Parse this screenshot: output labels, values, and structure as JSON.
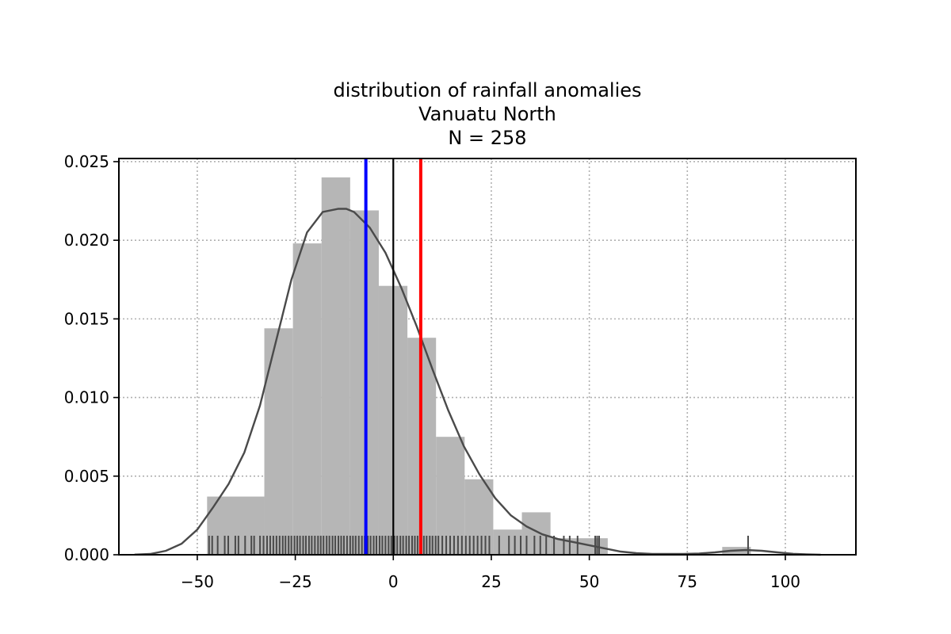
{
  "chart_data": {
    "type": "histogram",
    "title_lines": [
      "distribution of rainfall anomalies",
      "Vanuatu North",
      "N = 258"
    ],
    "xlabel": "",
    "ylabel": "",
    "xlim": [
      -70,
      118
    ],
    "ylim": [
      0,
      0.0252
    ],
    "xticks": [
      -50,
      -25,
      0,
      25,
      50,
      75,
      100
    ],
    "xtick_labels": [
      "−50",
      "−25",
      "0",
      "25",
      "50",
      "75",
      "100"
    ],
    "yticks": [
      0.0,
      0.005,
      0.01,
      0.015,
      0.02,
      0.025
    ],
    "ytick_labels": [
      "0.000",
      "0.005",
      "0.010",
      "0.015",
      "0.020",
      "0.025"
    ],
    "grid": true,
    "bar_color": "#b6b6b6",
    "bins": [
      {
        "x0": -47.5,
        "x1": -32.9,
        "density": 0.0037
      },
      {
        "x0": -32.9,
        "x1": -25.6,
        "density": 0.0144
      },
      {
        "x0": -25.6,
        "x1": -18.3,
        "density": 0.0198
      },
      {
        "x0": -18.3,
        "x1": -11.0,
        "density": 0.024
      },
      {
        "x0": -11.0,
        "x1": -3.7,
        "density": 0.0219
      },
      {
        "x0": -3.7,
        "x1": 3.6,
        "density": 0.0171
      },
      {
        "x0": 3.6,
        "x1": 10.9,
        "density": 0.0138
      },
      {
        "x0": 10.9,
        "x1": 18.2,
        "density": 0.0075
      },
      {
        "x0": 18.2,
        "x1": 25.5,
        "density": 0.0048
      },
      {
        "x0": 25.5,
        "x1": 32.8,
        "density": 0.0016
      },
      {
        "x0": 32.8,
        "x1": 40.1,
        "density": 0.0027
      },
      {
        "x0": 40.1,
        "x1": 54.7,
        "density": 0.00105
      },
      {
        "x0": 83.9,
        "x1": 91.2,
        "density": 0.0005
      }
    ],
    "kde": {
      "color": "#4a4a4a",
      "x": [
        -66,
        -62,
        -58,
        -54,
        -50,
        -46,
        -42,
        -38,
        -34,
        -30,
        -26,
        -22,
        -18,
        -14,
        -12,
        -10,
        -6,
        -2,
        2,
        6,
        10,
        14,
        18,
        22,
        26,
        30,
        34,
        38,
        42,
        46,
        50,
        54,
        58,
        62,
        66,
        70,
        74,
        78,
        82,
        86,
        90,
        94,
        98,
        102,
        106,
        109
      ],
      "y": [
        1e-05,
        5e-05,
        0.00025,
        0.0007,
        0.0016,
        0.003,
        0.0045,
        0.0065,
        0.0095,
        0.0135,
        0.0175,
        0.0205,
        0.0218,
        0.022,
        0.022,
        0.0218,
        0.0208,
        0.0192,
        0.017,
        0.0145,
        0.0118,
        0.0092,
        0.0069,
        0.0051,
        0.0036,
        0.0025,
        0.0018,
        0.0013,
        0.001,
        0.0008,
        0.0006,
        0.0004,
        0.0002,
        0.0001,
        5e-05,
        5e-05,
        5e-05,
        8e-05,
        0.00015,
        0.00025,
        0.0003,
        0.00025,
        0.00015,
        6e-05,
        2e-05,
        0.0
      ]
    },
    "rug": {
      "color": "#4a4a4a",
      "x": [
        -47,
        -46.2,
        -44.8,
        -43,
        -42.1,
        -40.3,
        -39.5,
        -37.8,
        -36.2,
        -35.5,
        -34,
        -33.1,
        -32.2,
        -31.4,
        -30.6,
        -29.8,
        -29,
        -28.2,
        -27.5,
        -26.7,
        -26,
        -25.2,
        -24.5,
        -23.8,
        -23,
        -22.3,
        -21.5,
        -20.8,
        -20,
        -19.2,
        -18.5,
        -17.8,
        -17,
        -16.3,
        -15.5,
        -14.8,
        -14,
        -13.3,
        -12.6,
        -11.8,
        -11,
        -10.3,
        -9.6,
        -8.8,
        -8,
        -7.3,
        -6.5,
        -5.8,
        -5,
        -4.3,
        -3.5,
        -2.8,
        -2,
        -1.2,
        -0.5,
        0.3,
        1,
        1.8,
        2.5,
        3.3,
        4,
        4.8,
        5.5,
        6.2,
        7,
        7.8,
        8.5,
        9.3,
        10,
        10.8,
        11.5,
        12.5,
        13.5,
        14.5,
        15.5,
        16.5,
        17.5,
        18.5,
        19.5,
        20.5,
        21.5,
        22.5,
        23.5,
        24.5,
        27,
        29.5,
        31,
        32.5,
        34,
        36,
        37.5,
        39,
        41,
        43.5,
        45,
        47,
        51.5,
        52,
        52.5,
        90.5
      ]
    },
    "vlines": [
      {
        "x": -7,
        "color": "#0000ff",
        "label": ""
      },
      {
        "x": 0,
        "color": "#000000",
        "label": ""
      },
      {
        "x": 7,
        "color": "#ff0000",
        "label": ""
      }
    ]
  }
}
